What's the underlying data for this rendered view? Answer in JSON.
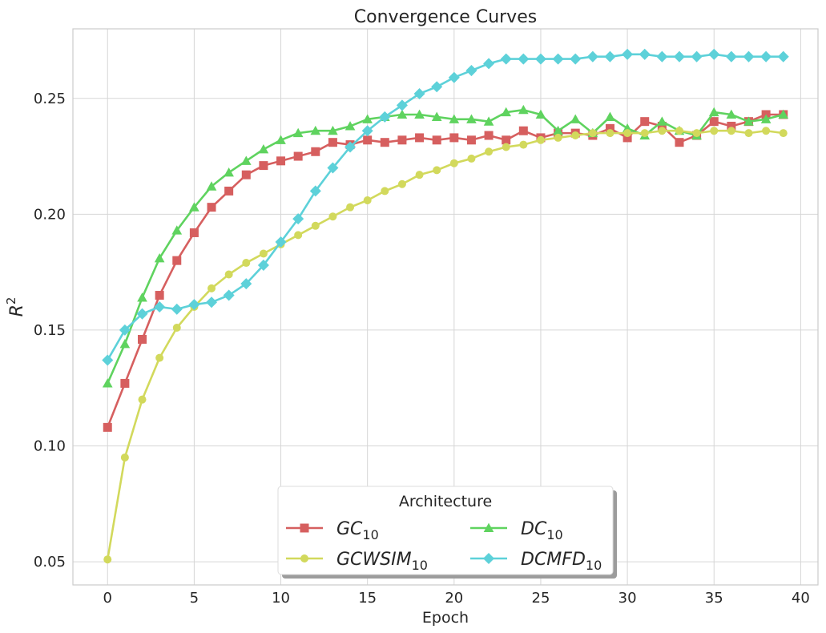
{
  "chart_data": {
    "type": "line",
    "title": "Convergence Curves",
    "xlabel": "Epoch",
    "ylabel": {
      "base": "R",
      "sup": "2"
    },
    "xlim": [
      -2,
      41
    ],
    "ylim": [
      0.04,
      0.28
    ],
    "xticks": [
      0,
      5,
      10,
      15,
      20,
      25,
      30,
      35,
      40
    ],
    "yticks": [
      0.05,
      0.1,
      0.15,
      0.2,
      0.25
    ],
    "ytick_labels": [
      "0.05",
      "0.10",
      "0.15",
      "0.20",
      "0.25"
    ],
    "grid": true,
    "legend": {
      "title": "Architecture",
      "placement": "lower-center",
      "columns": 2
    },
    "x": [
      0,
      1,
      2,
      3,
      4,
      5,
      6,
      7,
      8,
      9,
      10,
      11,
      12,
      13,
      14,
      15,
      16,
      17,
      18,
      19,
      20,
      21,
      22,
      23,
      24,
      25,
      26,
      27,
      28,
      29,
      30,
      31,
      32,
      33,
      34,
      35,
      36,
      37,
      38,
      39
    ],
    "series": [
      {
        "name": "GC",
        "sub": "10",
        "marker": "square",
        "color": "#d65f5f",
        "values": [
          0.108,
          0.127,
          0.146,
          0.165,
          0.18,
          0.192,
          0.203,
          0.21,
          0.217,
          0.221,
          0.223,
          0.225,
          0.227,
          0.231,
          0.23,
          0.232,
          0.231,
          0.232,
          0.233,
          0.232,
          0.233,
          0.232,
          0.234,
          0.232,
          0.236,
          0.233,
          0.235,
          0.235,
          0.234,
          0.237,
          0.233,
          0.24,
          0.238,
          0.231,
          0.234,
          0.24,
          0.238,
          0.24,
          0.243,
          0.243
        ]
      },
      {
        "name": "DC",
        "sub": "10",
        "marker": "triangle",
        "color": "#5fd35f",
        "values": [
          0.127,
          0.144,
          0.164,
          0.181,
          0.193,
          0.203,
          0.212,
          0.218,
          0.223,
          0.228,
          0.232,
          0.235,
          0.236,
          0.236,
          0.238,
          0.241,
          0.242,
          0.243,
          0.243,
          0.242,
          0.241,
          0.241,
          0.24,
          0.244,
          0.245,
          0.243,
          0.236,
          0.241,
          0.235,
          0.242,
          0.237,
          0.234,
          0.24,
          0.236,
          0.234,
          0.244,
          0.243,
          0.24,
          0.241,
          0.243
        ]
      },
      {
        "name": "GCWSIM",
        "sub": "10",
        "marker": "circle",
        "color": "#d2d95c",
        "values": [
          0.051,
          0.095,
          0.12,
          0.138,
          0.151,
          0.16,
          0.168,
          0.174,
          0.179,
          0.183,
          0.187,
          0.191,
          0.195,
          0.199,
          0.203,
          0.206,
          0.21,
          0.213,
          0.217,
          0.219,
          0.222,
          0.224,
          0.227,
          0.229,
          0.23,
          0.232,
          0.233,
          0.234,
          0.235,
          0.235,
          0.235,
          0.235,
          0.236,
          0.236,
          0.235,
          0.236,
          0.236,
          0.235,
          0.236,
          0.235
        ]
      },
      {
        "name": "DCMFD",
        "sub": "10",
        "marker": "diamond",
        "color": "#5dd1d9",
        "values": [
          0.137,
          0.15,
          0.157,
          0.16,
          0.159,
          0.161,
          0.162,
          0.165,
          0.17,
          0.178,
          0.188,
          0.198,
          0.21,
          0.22,
          0.229,
          0.236,
          0.242,
          0.247,
          0.252,
          0.255,
          0.259,
          0.262,
          0.265,
          0.267,
          0.267,
          0.267,
          0.267,
          0.267,
          0.268,
          0.268,
          0.269,
          0.269,
          0.268,
          0.268,
          0.268,
          0.269,
          0.268,
          0.268,
          0.268,
          0.268
        ]
      }
    ]
  }
}
